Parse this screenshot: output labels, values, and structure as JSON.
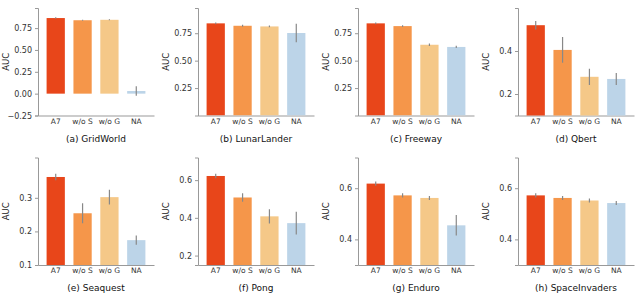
{
  "chart_data": [
    {
      "type": "bar",
      "title": "(a)  GridWorld",
      "ylabel": "AUC",
      "categories": [
        "A7",
        "w/o S",
        "w/o G",
        "NA"
      ],
      "values": [
        0.865,
        0.84,
        0.845,
        0.03
      ],
      "errors": [
        0.008,
        0.006,
        0.006,
        0.055
      ],
      "colors": [
        "#e8461a",
        "#f5964a",
        "#f5c888",
        "#bcd4e8"
      ],
      "ylim": [
        -0.25,
        0.98
      ],
      "yticks": [
        {
          "value": -0.25,
          "label": "−0.25"
        },
        {
          "value": 0,
          "label": "0.00"
        },
        0.25,
        {
          "value": 0.5,
          "label": "0.50"
        },
        0.75
      ]
    },
    {
      "type": "bar",
      "title": "(b)  LunarLander",
      "ylabel": "AUC",
      "categories": [
        "A7",
        "w/o S",
        "w/o G",
        "NA"
      ],
      "values": [
        0.84,
        0.818,
        0.812,
        0.752
      ],
      "errors": [
        0.008,
        0.01,
        0.008,
        0.085
      ],
      "colors": [
        "#e8461a",
        "#f5964a",
        "#f5c888",
        "#bcd4e8"
      ],
      "ylim": [
        0,
        0.98
      ],
      "yticks": [
        0.25,
        {
          "value": 0.5,
          "label": "0.50"
        },
        0.75
      ]
    },
    {
      "type": "bar",
      "title": "(c)  Freeway",
      "ylabel": "AUC",
      "categories": [
        "A7",
        "w/o S",
        "w/o G",
        "NA"
      ],
      "values": [
        0.84,
        0.815,
        0.645,
        0.625
      ],
      "errors": [
        0.008,
        0.008,
        0.012,
        0.01
      ],
      "colors": [
        "#e8461a",
        "#f5964a",
        "#f5c888",
        "#bcd4e8"
      ],
      "ylim": [
        0,
        0.98
      ],
      "yticks": [
        0.25,
        {
          "value": 0.5,
          "label": "0.50"
        },
        0.75
      ]
    },
    {
      "type": "bar",
      "title": "(d)  Qbert",
      "ylabel": "AUC",
      "categories": [
        "A7",
        "w/o S",
        "w/o G",
        "NA"
      ],
      "values": [
        0.52,
        0.405,
        0.28,
        0.27
      ],
      "errors": [
        0.02,
        0.06,
        0.038,
        0.028
      ],
      "colors": [
        "#e8461a",
        "#f5964a",
        "#f5c888",
        "#bcd4e8"
      ],
      "ylim": [
        0.1,
        0.6
      ],
      "yticks": [
        0.2,
        0.4
      ]
    },
    {
      "type": "bar",
      "title": "(e)  Seaquest",
      "ylabel": "AUC",
      "categories": [
        "A7",
        "w/o S",
        "w/o G",
        "NA"
      ],
      "values": [
        0.362,
        0.254,
        0.302,
        0.174
      ],
      "errors": [
        0.01,
        0.03,
        0.022,
        0.014
      ],
      "colors": [
        "#e8461a",
        "#f5964a",
        "#f5c888",
        "#bcd4e8"
      ],
      "ylim": [
        0.1,
        0.42
      ],
      "yticks": [
        0.1,
        0.2,
        0.3
      ]
    },
    {
      "type": "bar",
      "title": "(f)  Pong",
      "ylabel": "AUC",
      "categories": [
        "A7",
        "w/o S",
        "w/o G",
        "NA"
      ],
      "values": [
        0.622,
        0.508,
        0.408,
        0.372
      ],
      "errors": [
        0.012,
        0.022,
        0.038,
        0.06
      ],
      "colors": [
        "#e8461a",
        "#f5964a",
        "#f5c888",
        "#bcd4e8"
      ],
      "ylim": [
        0.15,
        0.72
      ],
      "yticks": [
        0.2,
        0.4,
        0.6
      ]
    },
    {
      "type": "bar",
      "title": "(g)  Enduro",
      "ylabel": "AUC",
      "categories": [
        "A7",
        "w/o S",
        "w/o G",
        "NA"
      ],
      "values": [
        0.618,
        0.572,
        0.562,
        0.455
      ],
      "errors": [
        0.008,
        0.008,
        0.008,
        0.04
      ],
      "colors": [
        "#e8461a",
        "#f5964a",
        "#f5c888",
        "#bcd4e8"
      ],
      "ylim": [
        0.3,
        0.72
      ],
      "yticks": [
        0.4,
        0.6
      ]
    },
    {
      "type": "bar",
      "title": "(h)  SpaceInvaders",
      "ylabel": "AUC",
      "categories": [
        "A7",
        "w/o S",
        "w/o G",
        "NA"
      ],
      "values": [
        0.572,
        0.562,
        0.552,
        0.542
      ],
      "errors": [
        0.008,
        0.008,
        0.008,
        0.008
      ],
      "colors": [
        "#e8461a",
        "#f5964a",
        "#f5c888",
        "#bcd4e8"
      ],
      "ylim": [
        0.3,
        0.72
      ],
      "yticks": [
        0.4,
        0.6
      ]
    }
  ]
}
